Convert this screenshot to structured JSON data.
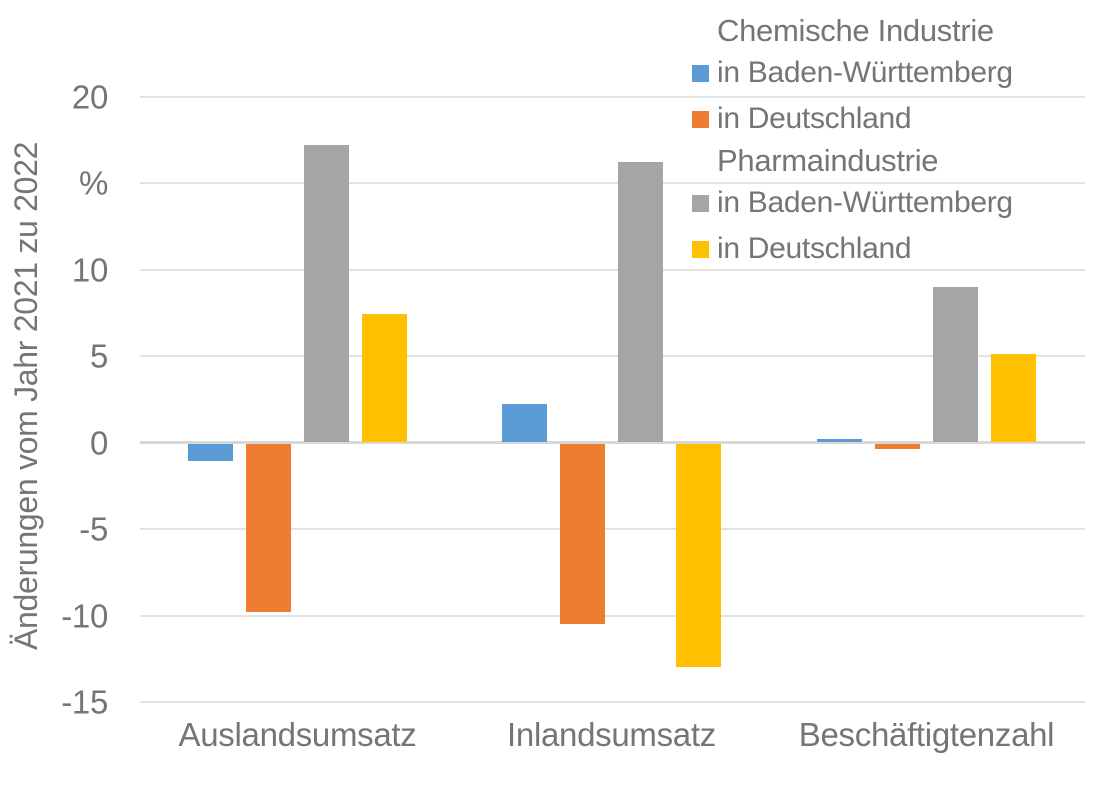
{
  "chart_data": {
    "type": "bar",
    "title": "",
    "ylabel": "Änderungen vom Jahr 2021 zu 2022",
    "xlabel": "",
    "categories": [
      "Auslandsumsatz",
      "Inlandsumsatz",
      "Beschäftigtenzahl"
    ],
    "series": [
      {
        "industry": "Chemische Industrie",
        "label": "in Baden-Württemberg",
        "color": "#5B9BD5",
        "values": [
          -1.0,
          2.2,
          0.2
        ]
      },
      {
        "industry": "Chemische Industrie",
        "label": "in Deutschland",
        "color": "#ED7D31",
        "values": [
          -9.7,
          -10.4,
          -0.3
        ]
      },
      {
        "industry": "Pharmaindustrie",
        "label": "in Baden-Württemberg",
        "color": "#A5A5A5",
        "values": [
          17.2,
          16.2,
          9.0
        ]
      },
      {
        "industry": "Pharmaindustrie",
        "label": "in Deutschland",
        "color": "#FFC000",
        "values": [
          7.4,
          -12.9,
          5.1
        ]
      }
    ],
    "legend_groups": [
      "Chemische Industrie",
      "Pharmaindustrie"
    ],
    "legend_position": "top-right",
    "yticks": [
      20,
      15,
      10,
      5,
      0,
      -5,
      -10,
      -15
    ],
    "ytick_labels": [
      "20",
      "%",
      "10",
      "5",
      "0",
      "-5",
      "-10",
      "-15"
    ],
    "ylim": [
      -16.5,
      22
    ],
    "grid": true
  },
  "colors": {
    "text": "#757575",
    "gridline": "#E2E2E2",
    "zero_line": "#D8D8D8",
    "background": "#FFFFFF"
  }
}
